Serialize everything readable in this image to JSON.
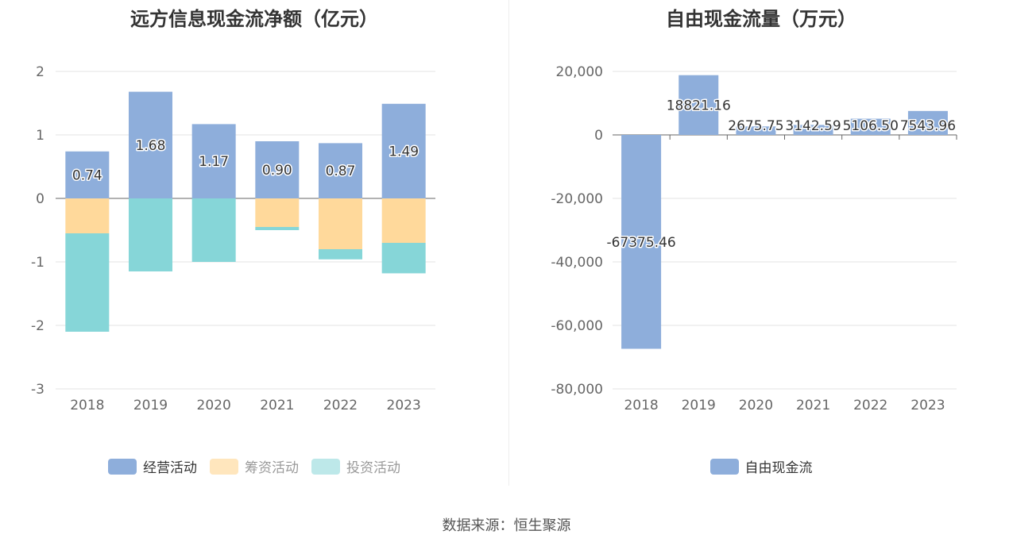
{
  "left_chart": {
    "title": "远方信息现金流净额（亿元）",
    "legend": [
      {
        "label": "经营活动",
        "color": "#8eaedb"
      },
      {
        "label": "筹资活动",
        "color": "#ffd99b"
      },
      {
        "label": "投资活动",
        "color": "#86d6d8"
      }
    ]
  },
  "right_chart": {
    "title": "自由现金流量（万元）",
    "legend": [
      {
        "label": "自由现金流",
        "color": "#8eaedb"
      }
    ]
  },
  "source": "数据来源：恒生聚源",
  "chart_data": [
    {
      "type": "bar",
      "stacked": true,
      "title": "远方信息现金流净额（亿元）",
      "categories": [
        "2018",
        "2019",
        "2020",
        "2021",
        "2022",
        "2023"
      ],
      "ylim": [
        -3,
        2
      ],
      "yticks": [
        2,
        1,
        0,
        -1,
        -2,
        -3
      ],
      "series": [
        {
          "name": "经营活动",
          "color": "#8eaedb",
          "values": [
            0.74,
            1.68,
            1.17,
            0.9,
            0.87,
            1.49
          ],
          "labels": [
            "0.74",
            "1.68",
            "1.17",
            "0.90",
            "0.87",
            "1.49"
          ]
        },
        {
          "name": "筹资活动",
          "color": "#ffd99b",
          "values": [
            -0.55,
            0,
            0,
            -0.45,
            -0.8,
            -0.7
          ]
        },
        {
          "name": "投资活动",
          "color": "#86d6d8",
          "values": [
            -1.55,
            -1.15,
            -1.0,
            -0.05,
            -0.16,
            -0.48
          ]
        }
      ],
      "legend_position": "bottom",
      "grid": true
    },
    {
      "type": "bar",
      "title": "自由现金流量（万元）",
      "categories": [
        "2018",
        "2019",
        "2020",
        "2021",
        "2022",
        "2023"
      ],
      "ylim": [
        -80000,
        20000
      ],
      "yticks": [
        20000,
        0,
        -20000,
        -40000,
        -60000,
        -80000
      ],
      "ytick_labels": [
        "20,000",
        "0",
        "-20,000",
        "-40,000",
        "-60,000",
        "-80,000"
      ],
      "series": [
        {
          "name": "自由现金流",
          "color": "#8eaedb",
          "values": [
            -67375.46,
            18821.16,
            2675.75,
            3142.59,
            5106.5,
            7543.96
          ],
          "labels": [
            "-67375.46",
            "18821.16",
            "2675.75",
            "3142.59",
            "5106.50",
            "7543.96"
          ]
        }
      ],
      "legend_position": "bottom",
      "grid": true
    }
  ]
}
